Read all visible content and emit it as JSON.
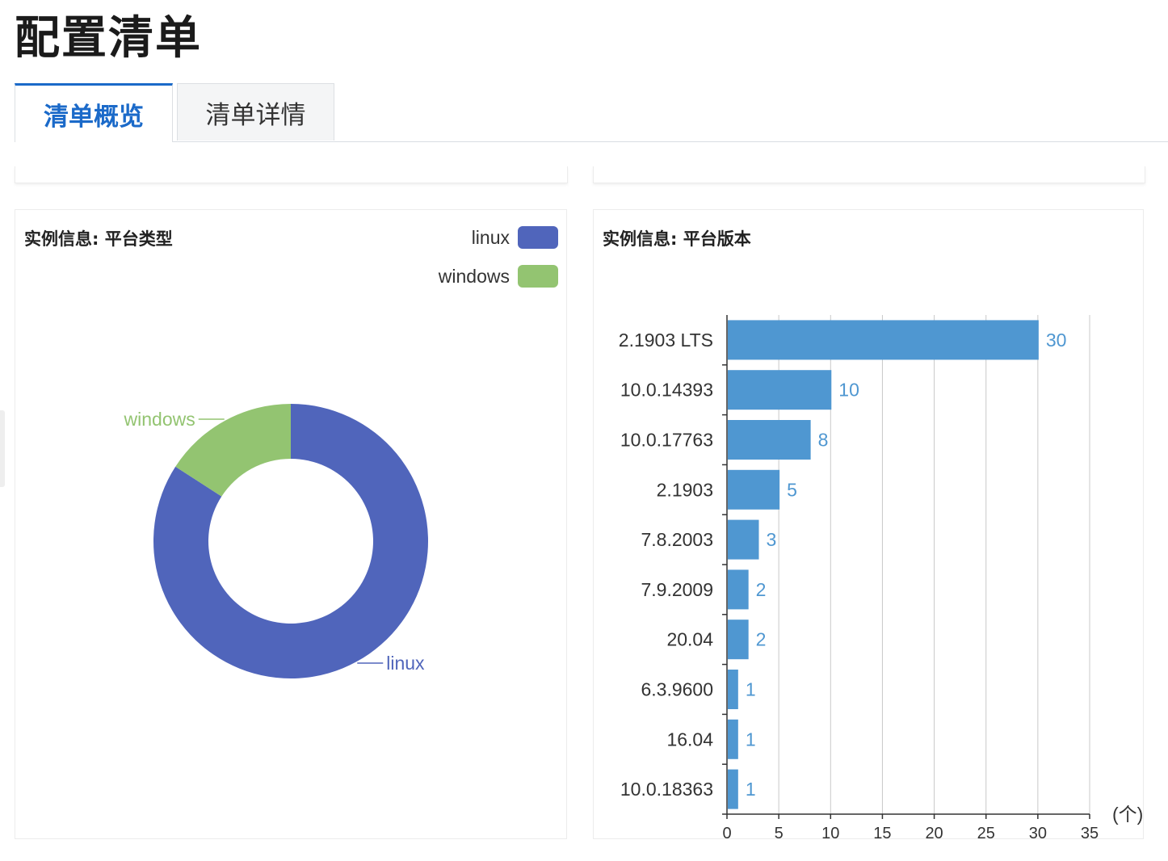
{
  "page": {
    "title": "配置清单"
  },
  "tabs": [
    {
      "label": "清单概览",
      "active": true
    },
    {
      "label": "清单详情",
      "active": false
    }
  ],
  "colors": {
    "accent": "#1b6ac9",
    "linux": "#5065bb",
    "windows": "#93c471",
    "bar": "#4f97d1"
  },
  "cards": {
    "platform_type": {
      "title": "实例信息: 平台类型",
      "legend": [
        {
          "label": "linux"
        },
        {
          "label": "windows"
        }
      ]
    },
    "platform_version": {
      "title": "实例信息: 平台版本"
    }
  },
  "chart_data": [
    {
      "type": "pie",
      "style": "donut",
      "title": "实例信息: 平台类型",
      "slices": [
        {
          "name": "linux",
          "value": 53,
          "color": "#5065bb"
        },
        {
          "name": "windows",
          "value": 10,
          "color": "#93c471"
        }
      ],
      "legend": "top-right"
    },
    {
      "type": "bar",
      "orientation": "horizontal",
      "title": "实例信息: 平台版本",
      "categories": [
        "2.1903 LTS",
        "10.0.14393",
        "10.0.17763",
        "2.1903",
        "7.8.2003",
        "7.9.2009",
        "20.04",
        "6.3.9600",
        "16.04",
        "10.0.18363"
      ],
      "values": [
        30,
        10,
        8,
        5,
        3,
        2,
        2,
        1,
        1,
        1
      ],
      "xlabel": "(个)",
      "xlim": [
        0,
        35
      ],
      "grid": true,
      "data_labels": true,
      "color": "#4f97d1"
    }
  ]
}
